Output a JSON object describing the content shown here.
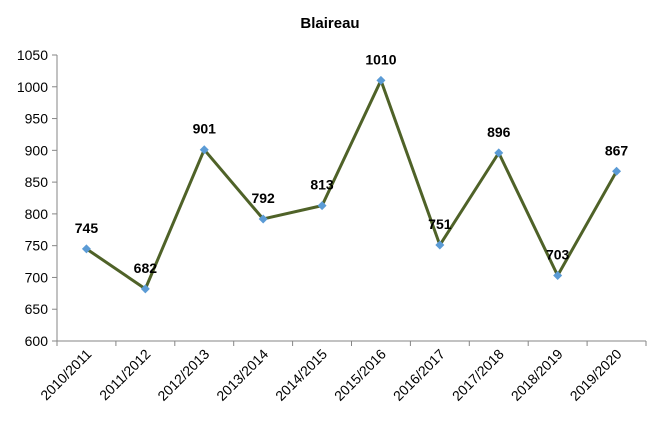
{
  "chart_data": {
    "type": "line",
    "title": "Blaireau",
    "xlabel": "",
    "ylabel": "",
    "categories": [
      "2010/2011",
      "2011/2012",
      "2012/2013",
      "2013/2014",
      "2014/2015",
      "2015/2016",
      "2016/2017",
      "2017/2018",
      "2018/2019",
      "2019/2020"
    ],
    "series": [
      {
        "values": [
          745,
          682,
          901,
          792,
          813,
          1010,
          751,
          896,
          703,
          867
        ]
      }
    ],
    "ylim": [
      600,
      1050
    ],
    "yticks": [
      600,
      650,
      700,
      750,
      800,
      850,
      900,
      950,
      1000,
      1050
    ],
    "grid": false,
    "legend": "none",
    "data_labels": true,
    "colors": {
      "line": "#4f6228",
      "marker": "#5b9bd5",
      "axis": "#868686"
    }
  }
}
